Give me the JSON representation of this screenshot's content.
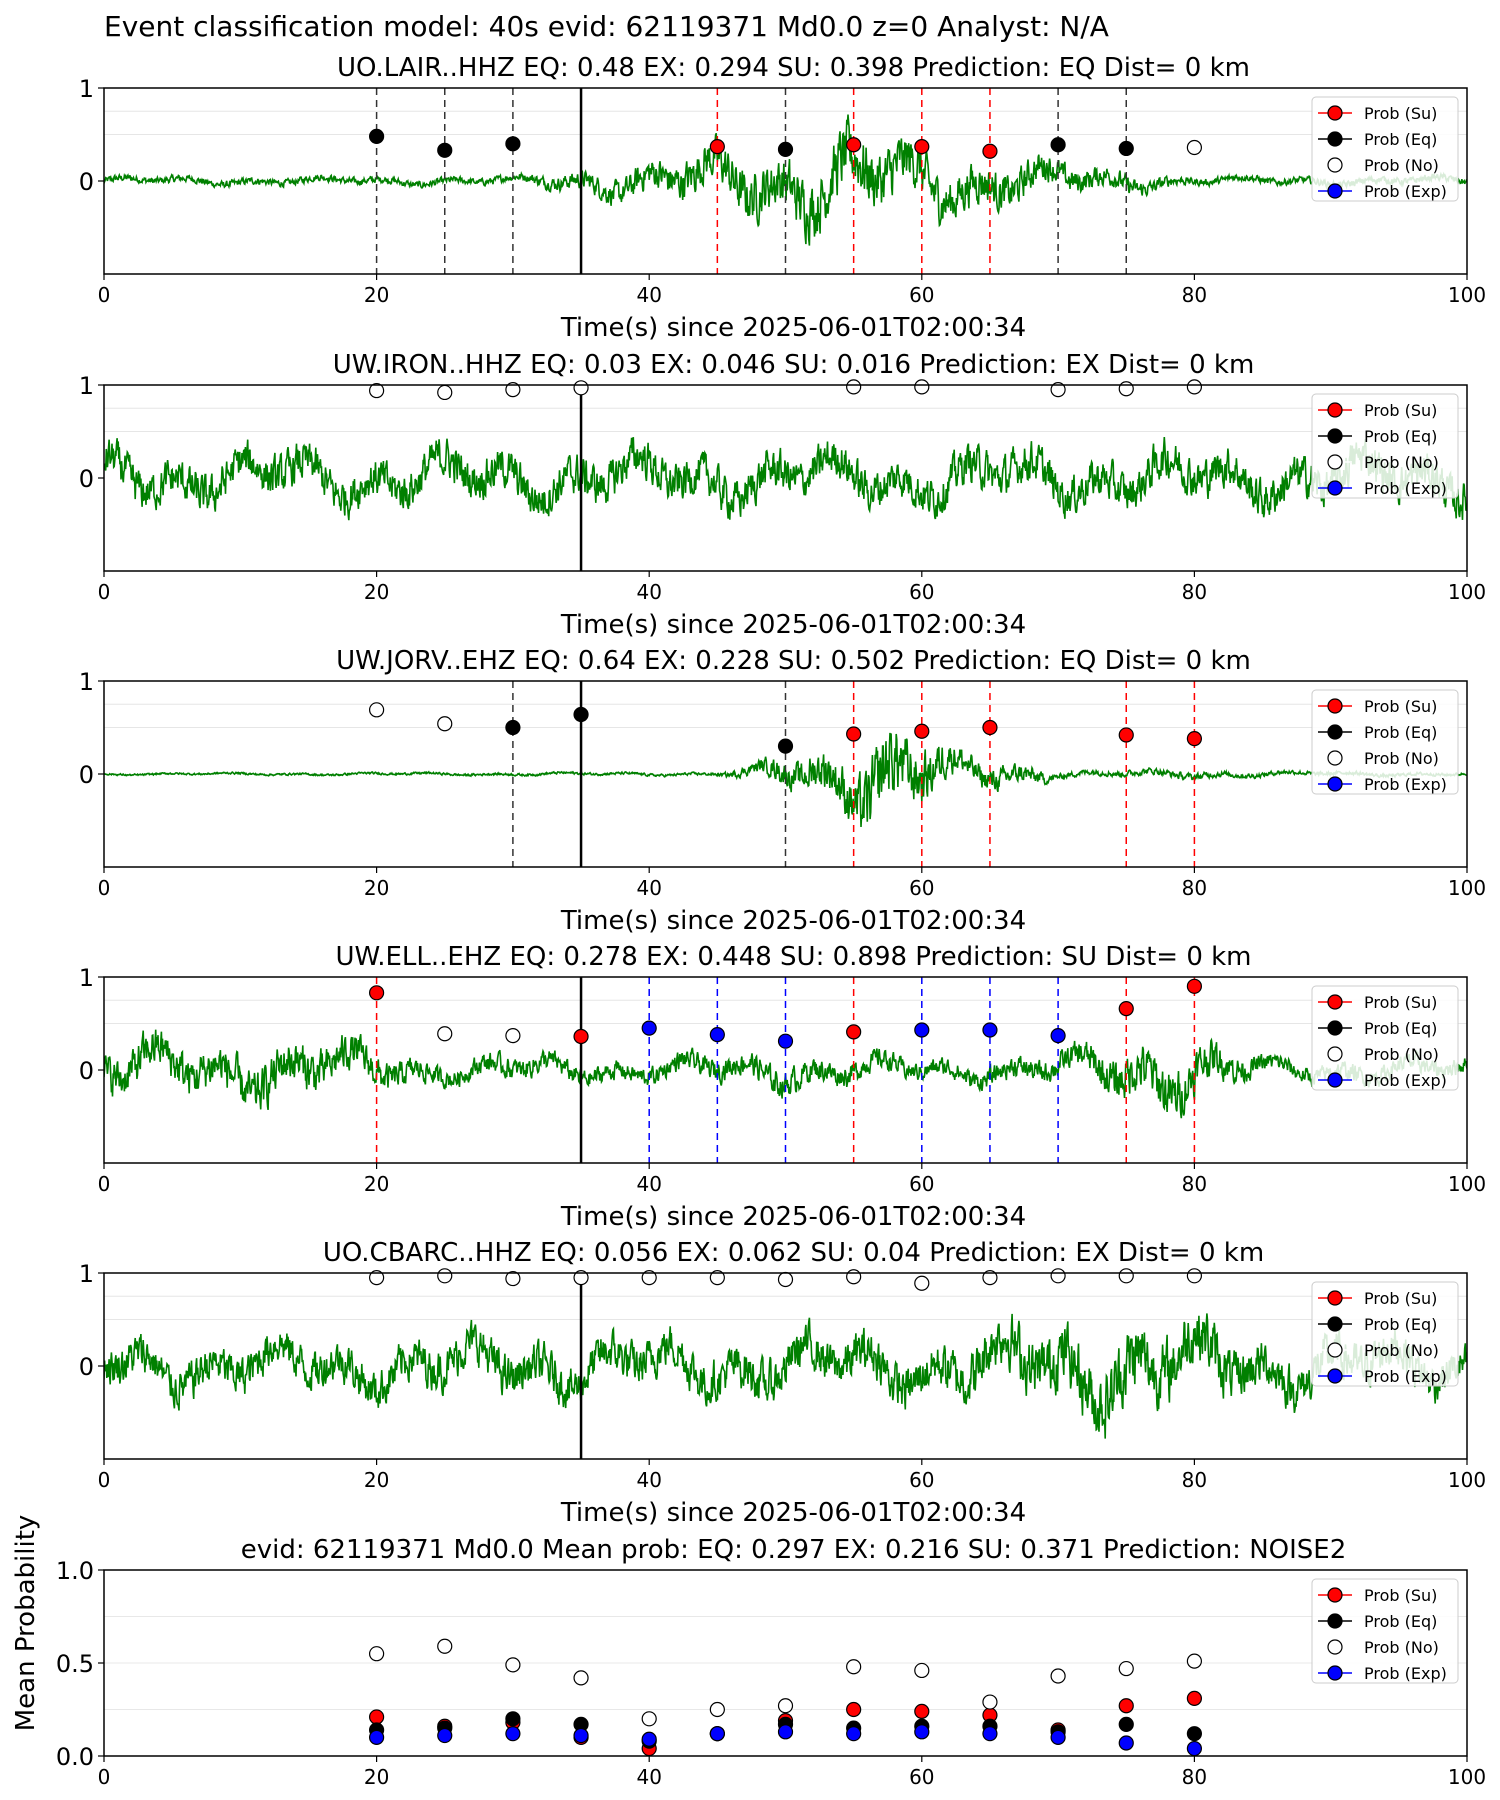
{
  "figure_title": "Event classification model: 40s evid: 62119371 Md0.0 z=0 Analyst: N/A",
  "legend_labels": [
    "Prob (Su)",
    "Prob (Eq)",
    "Prob (No)",
    "Prob (Exp)"
  ],
  "colors": {
    "su": "#ff0000",
    "eq": "#000000",
    "no": "#ffffff",
    "exp": "#0000ff",
    "waveform": "#008000",
    "pick": "#000000"
  },
  "chart_data": [
    {
      "type": "scatter",
      "title": "UO.LAIR..HHZ   EQ: 0.48   EX: 0.294   SU: 0.398   Prediction: EQ    Dist= 0 km",
      "xlabel": "Time(s) since 2025-06-01T02:00:34",
      "ylabel": "",
      "xlim": [
        0,
        100
      ],
      "ylim": [
        -1,
        1
      ],
      "xticks": [
        "0",
        "20",
        "40",
        "60",
        "80",
        "100"
      ],
      "yticks": [
        "0",
        "1"
      ],
      "waveform": {
        "amplitude": 0.08,
        "envelope": [
          [
            0,
            0.08
          ],
          [
            30,
            0.08
          ],
          [
            35,
            0.2
          ],
          [
            40,
            0.35
          ],
          [
            45,
            0.5
          ],
          [
            50,
            0.6
          ],
          [
            55,
            0.75
          ],
          [
            60,
            0.55
          ],
          [
            65,
            0.45
          ],
          [
            70,
            0.3
          ],
          [
            75,
            0.2
          ],
          [
            80,
            0.08
          ],
          [
            100,
            0.08
          ]
        ]
      },
      "pick_time": 35,
      "vlines": [
        {
          "x": 20,
          "c": "eq"
        },
        {
          "x": 25,
          "c": "eq"
        },
        {
          "x": 30,
          "c": "eq"
        },
        {
          "x": 45,
          "c": "su"
        },
        {
          "x": 50,
          "c": "eq"
        },
        {
          "x": 55,
          "c": "su"
        },
        {
          "x": 60,
          "c": "su"
        },
        {
          "x": 65,
          "c": "su"
        },
        {
          "x": 70,
          "c": "eq"
        },
        {
          "x": 75,
          "c": "eq"
        }
      ],
      "points": [
        {
          "x": 20,
          "y": 0.48,
          "c": "eq"
        },
        {
          "x": 25,
          "y": 0.33,
          "c": "eq"
        },
        {
          "x": 30,
          "y": 0.4,
          "c": "eq"
        },
        {
          "x": 45,
          "y": 0.37,
          "c": "su"
        },
        {
          "x": 50,
          "y": 0.34,
          "c": "eq"
        },
        {
          "x": 55,
          "y": 0.39,
          "c": "su"
        },
        {
          "x": 60,
          "y": 0.37,
          "c": "su"
        },
        {
          "x": 65,
          "y": 0.32,
          "c": "su"
        },
        {
          "x": 70,
          "y": 0.39,
          "c": "eq"
        },
        {
          "x": 75,
          "y": 0.35,
          "c": "eq"
        },
        {
          "x": 80,
          "y": 0.36,
          "c": "no"
        }
      ]
    },
    {
      "type": "scatter",
      "title": "UW.IRON..HHZ   EQ: 0.03   EX: 0.046   SU: 0.016   Prediction: EX    Dist= 0 km",
      "xlabel": "Time(s) since 2025-06-01T02:00:34",
      "ylabel": "",
      "xlim": [
        0,
        100
      ],
      "ylim": [
        -1,
        1
      ],
      "xticks": [
        "0",
        "20",
        "40",
        "60",
        "80",
        "100"
      ],
      "yticks": [
        "0",
        "1"
      ],
      "waveform": {
        "amplitude": 0.45,
        "envelope": [
          [
            0,
            0.45
          ],
          [
            100,
            0.45
          ]
        ]
      },
      "pick_time": 35,
      "vlines": [],
      "points": [
        {
          "x": 20,
          "y": 0.94,
          "c": "no"
        },
        {
          "x": 25,
          "y": 0.92,
          "c": "no"
        },
        {
          "x": 30,
          "y": 0.95,
          "c": "no"
        },
        {
          "x": 35,
          "y": 0.97,
          "c": "no"
        },
        {
          "x": 55,
          "y": 0.98,
          "c": "no"
        },
        {
          "x": 60,
          "y": 0.98,
          "c": "no"
        },
        {
          "x": 70,
          "y": 0.95,
          "c": "no"
        },
        {
          "x": 75,
          "y": 0.96,
          "c": "no"
        },
        {
          "x": 80,
          "y": 0.98,
          "c": "no"
        }
      ]
    },
    {
      "type": "scatter",
      "title": "UW.JORV..EHZ   EQ: 0.64   EX: 0.228   SU: 0.502   Prediction: EQ    Dist= 0 km",
      "xlabel": "Time(s) since 2025-06-01T02:00:34",
      "ylabel": "",
      "xlim": [
        0,
        100
      ],
      "ylim": [
        -1,
        1
      ],
      "xticks": [
        "0",
        "20",
        "40",
        "60",
        "80",
        "100"
      ],
      "yticks": [
        "0",
        "1"
      ],
      "waveform": {
        "amplitude": 0.02,
        "envelope": [
          [
            0,
            0.02
          ],
          [
            45,
            0.03
          ],
          [
            48,
            0.15
          ],
          [
            52,
            0.4
          ],
          [
            55,
            0.6
          ],
          [
            57,
            0.9
          ],
          [
            60,
            0.6
          ],
          [
            63,
            0.3
          ],
          [
            68,
            0.2
          ],
          [
            70,
            0.06
          ],
          [
            80,
            0.08
          ],
          [
            85,
            0.05
          ],
          [
            100,
            0.03
          ]
        ]
      },
      "pick_time": 35,
      "vlines": [
        {
          "x": 30,
          "c": "eq"
        },
        {
          "x": 50,
          "c": "eq"
        },
        {
          "x": 55,
          "c": "su"
        },
        {
          "x": 60,
          "c": "su"
        },
        {
          "x": 65,
          "c": "su"
        },
        {
          "x": 75,
          "c": "su"
        },
        {
          "x": 80,
          "c": "su"
        }
      ],
      "points": [
        {
          "x": 20,
          "y": 0.69,
          "c": "no"
        },
        {
          "x": 25,
          "y": 0.54,
          "c": "no"
        },
        {
          "x": 30,
          "y": 0.5,
          "c": "eq"
        },
        {
          "x": 35,
          "y": 0.64,
          "c": "eq"
        },
        {
          "x": 50,
          "y": 0.3,
          "c": "eq"
        },
        {
          "x": 55,
          "y": 0.43,
          "c": "su"
        },
        {
          "x": 60,
          "y": 0.46,
          "c": "su"
        },
        {
          "x": 65,
          "y": 0.5,
          "c": "su"
        },
        {
          "x": 75,
          "y": 0.42,
          "c": "su"
        },
        {
          "x": 80,
          "y": 0.38,
          "c": "su"
        }
      ]
    },
    {
      "type": "scatter",
      "title": "UW.ELL..EHZ   EQ: 0.278   EX: 0.448   SU: 0.898   Prediction: SU    Dist= 0 km",
      "xlabel": "Time(s) since 2025-06-01T02:00:34",
      "ylabel": "",
      "xlim": [
        0,
        100
      ],
      "ylim": [
        -1,
        1
      ],
      "xticks": [
        "0",
        "20",
        "40",
        "60",
        "80",
        "100"
      ],
      "yticks": [
        "0",
        "1"
      ],
      "waveform": {
        "amplitude": 0.35,
        "envelope": [
          [
            0,
            0.45
          ],
          [
            15,
            0.5
          ],
          [
            20,
            0.35
          ],
          [
            25,
            0.2
          ],
          [
            30,
            0.25
          ],
          [
            40,
            0.2
          ],
          [
            50,
            0.3
          ],
          [
            60,
            0.2
          ],
          [
            70,
            0.25
          ],
          [
            75,
            0.5
          ],
          [
            78,
            0.6
          ],
          [
            85,
            0.2
          ],
          [
            100,
            0.2
          ]
        ]
      },
      "pick_time": 35,
      "vlines": [
        {
          "x": 20,
          "c": "su"
        },
        {
          "x": 40,
          "c": "exp"
        },
        {
          "x": 45,
          "c": "exp"
        },
        {
          "x": 50,
          "c": "exp"
        },
        {
          "x": 55,
          "c": "su"
        },
        {
          "x": 60,
          "c": "exp"
        },
        {
          "x": 65,
          "c": "exp"
        },
        {
          "x": 70,
          "c": "exp"
        },
        {
          "x": 75,
          "c": "su"
        },
        {
          "x": 80,
          "c": "su"
        }
      ],
      "points": [
        {
          "x": 20,
          "y": 0.83,
          "c": "su"
        },
        {
          "x": 25,
          "y": 0.39,
          "c": "no"
        },
        {
          "x": 30,
          "y": 0.37,
          "c": "no"
        },
        {
          "x": 35,
          "y": 0.36,
          "c": "su"
        },
        {
          "x": 40,
          "y": 0.45,
          "c": "exp"
        },
        {
          "x": 45,
          "y": 0.38,
          "c": "exp"
        },
        {
          "x": 50,
          "y": 0.31,
          "c": "exp"
        },
        {
          "x": 55,
          "y": 0.41,
          "c": "su"
        },
        {
          "x": 60,
          "y": 0.43,
          "c": "exp"
        },
        {
          "x": 65,
          "y": 0.43,
          "c": "exp"
        },
        {
          "x": 70,
          "y": 0.37,
          "c": "exp"
        },
        {
          "x": 75,
          "y": 0.66,
          "c": "su"
        },
        {
          "x": 80,
          "y": 0.9,
          "c": "su"
        }
      ]
    },
    {
      "type": "scatter",
      "title": "UO.CBARC..HHZ   EQ: 0.056   EX: 0.062   SU: 0.04   Prediction: EX    Dist= 0 km",
      "xlabel": "Time(s) since 2025-06-01T02:00:34",
      "ylabel": "",
      "xlim": [
        0,
        100
      ],
      "ylim": [
        -1,
        1
      ],
      "xticks": [
        "0",
        "20",
        "40",
        "60",
        "80",
        "100"
      ],
      "yticks": [
        "0",
        "1"
      ],
      "waveform": {
        "amplitude": 0.45,
        "envelope": [
          [
            0,
            0.45
          ],
          [
            60,
            0.5
          ],
          [
            75,
            0.8
          ],
          [
            80,
            0.7
          ],
          [
            85,
            0.5
          ],
          [
            100,
            0.45
          ]
        ]
      },
      "pick_time": 35,
      "vlines": [],
      "points": [
        {
          "x": 20,
          "y": 0.95,
          "c": "no"
        },
        {
          "x": 25,
          "y": 0.97,
          "c": "no"
        },
        {
          "x": 30,
          "y": 0.94,
          "c": "no"
        },
        {
          "x": 35,
          "y": 0.95,
          "c": "no"
        },
        {
          "x": 40,
          "y": 0.95,
          "c": "no"
        },
        {
          "x": 45,
          "y": 0.95,
          "c": "no"
        },
        {
          "x": 50,
          "y": 0.93,
          "c": "no"
        },
        {
          "x": 55,
          "y": 0.96,
          "c": "no"
        },
        {
          "x": 60,
          "y": 0.89,
          "c": "no"
        },
        {
          "x": 65,
          "y": 0.95,
          "c": "no"
        },
        {
          "x": 70,
          "y": 0.97,
          "c": "no"
        },
        {
          "x": 75,
          "y": 0.97,
          "c": "no"
        },
        {
          "x": 80,
          "y": 0.97,
          "c": "no"
        }
      ]
    },
    {
      "type": "scatter",
      "title": "evid: 62119371  Md0.0   Mean prob:   EQ: 0.297  EX: 0.216  SU: 0.371   Prediction: NOISE2",
      "xlabel": "",
      "ylabel": "Mean Probability",
      "xlim": [
        0,
        100
      ],
      "ylim": [
        0,
        1
      ],
      "xticks": [
        "0",
        "20",
        "40",
        "60",
        "80",
        "100"
      ],
      "yticks": [
        "0.0",
        "0.5",
        "1.0"
      ],
      "series": [
        {
          "key": "su",
          "x": [
            20,
            25,
            30,
            35,
            40,
            45,
            50,
            55,
            60,
            65,
            70,
            75,
            80
          ],
          "values": [
            0.21,
            0.16,
            0.18,
            0.1,
            0.04,
            0.12,
            0.19,
            0.25,
            0.24,
            0.22,
            0.14,
            0.27,
            0.31
          ]
        },
        {
          "key": "eq",
          "x": [
            20,
            25,
            30,
            35,
            40,
            45,
            50,
            55,
            60,
            65,
            70,
            75,
            80
          ],
          "values": [
            0.14,
            0.15,
            0.2,
            0.17,
            0.08,
            0.12,
            0.17,
            0.15,
            0.16,
            0.16,
            0.13,
            0.17,
            0.12
          ]
        },
        {
          "key": "no",
          "x": [
            20,
            25,
            30,
            35,
            40,
            45,
            50,
            55,
            60,
            65,
            70,
            75,
            80
          ],
          "values": [
            0.55,
            0.59,
            0.49,
            0.42,
            0.2,
            0.25,
            0.27,
            0.48,
            0.46,
            0.29,
            0.43,
            0.47,
            0.51
          ]
        },
        {
          "key": "exp",
          "x": [
            20,
            25,
            30,
            35,
            40,
            45,
            50,
            55,
            60,
            65,
            70,
            75,
            80
          ],
          "values": [
            0.1,
            0.11,
            0.12,
            0.11,
            0.09,
            0.12,
            0.13,
            0.12,
            0.13,
            0.12,
            0.1,
            0.07,
            0.04
          ]
        }
      ]
    }
  ]
}
